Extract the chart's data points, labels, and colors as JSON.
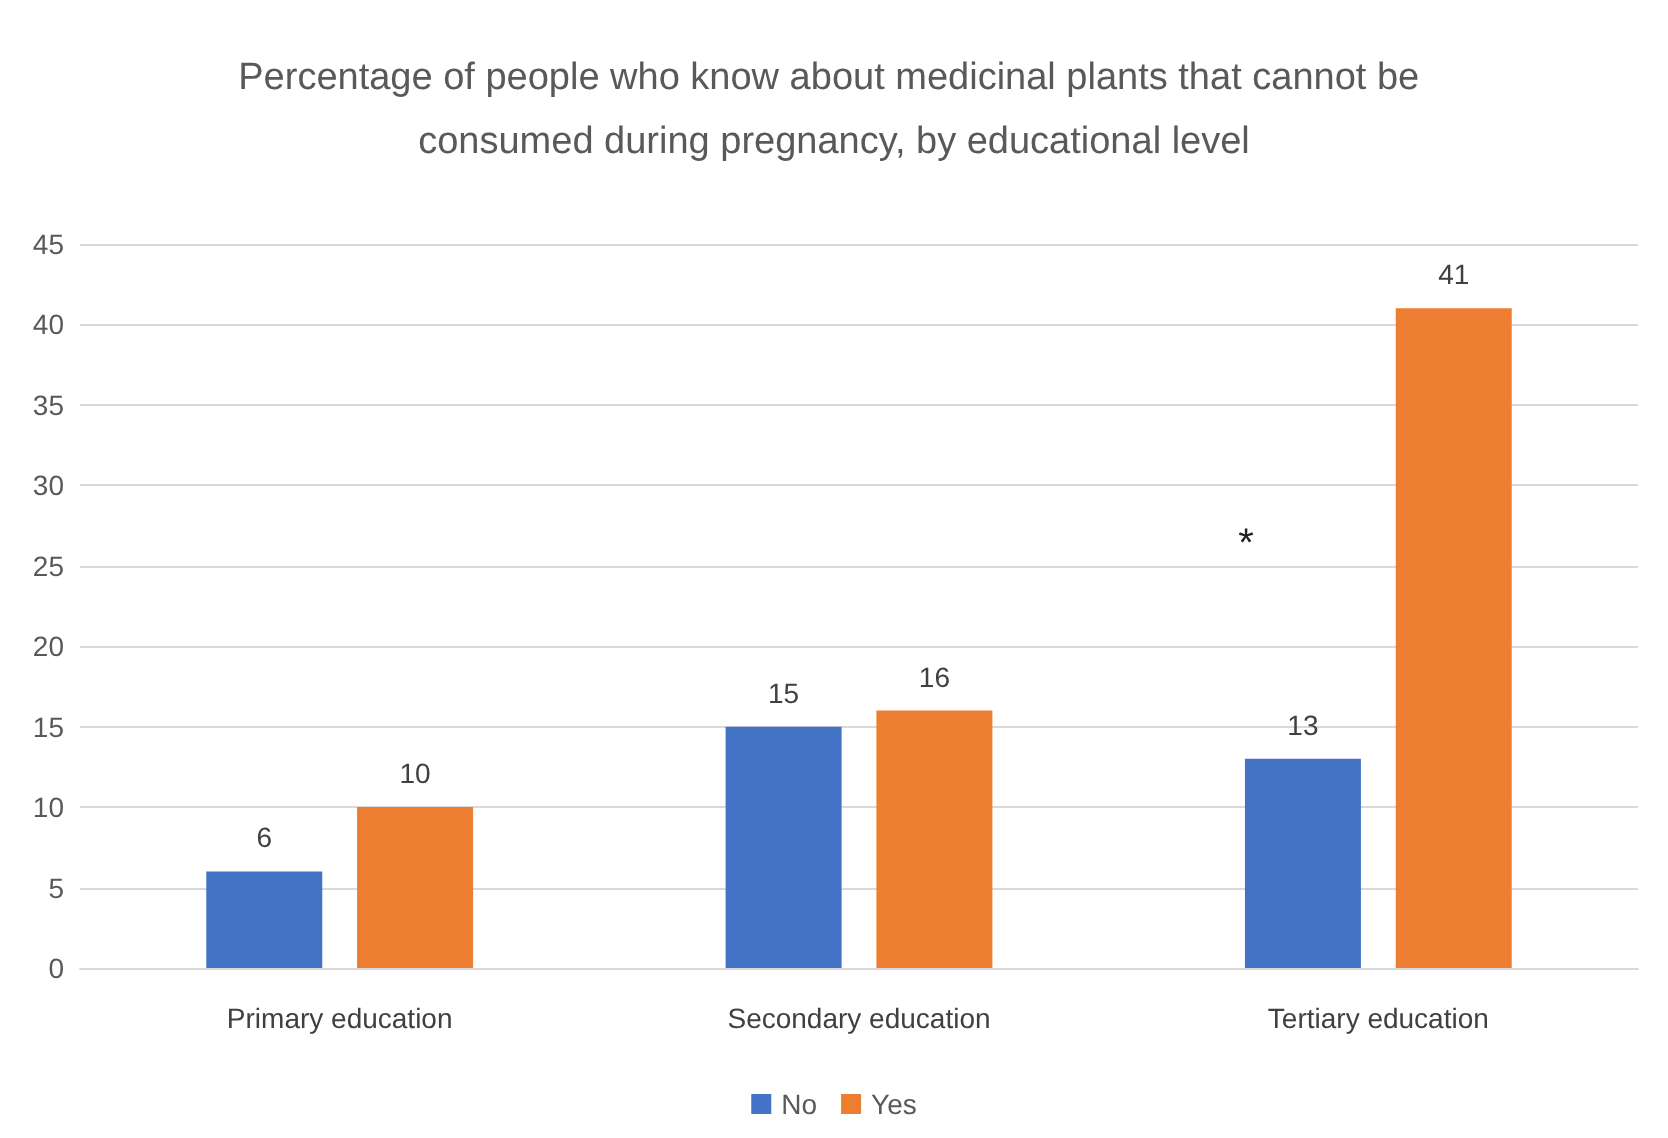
{
  "chart_data": {
    "type": "bar",
    "title": "Percentage of people who know about medicinal plants that cannot be consumed during pregnancy, by educational level",
    "categories": [
      "Primary education",
      "Secondary education",
      "Tertiary education"
    ],
    "series": [
      {
        "name": "No",
        "color": "#4472c4",
        "values": [
          6,
          15,
          13
        ]
      },
      {
        "name": "Yes",
        "color": "#ed7d31",
        "values": [
          10,
          16,
          41
        ]
      }
    ],
    "ylim": [
      0,
      45
    ],
    "yticks": [
      0,
      5,
      10,
      15,
      20,
      25,
      30,
      35,
      40,
      45
    ],
    "grid": "y",
    "legend": "bottom",
    "data_labels": true,
    "annotations": [
      "*"
    ]
  }
}
